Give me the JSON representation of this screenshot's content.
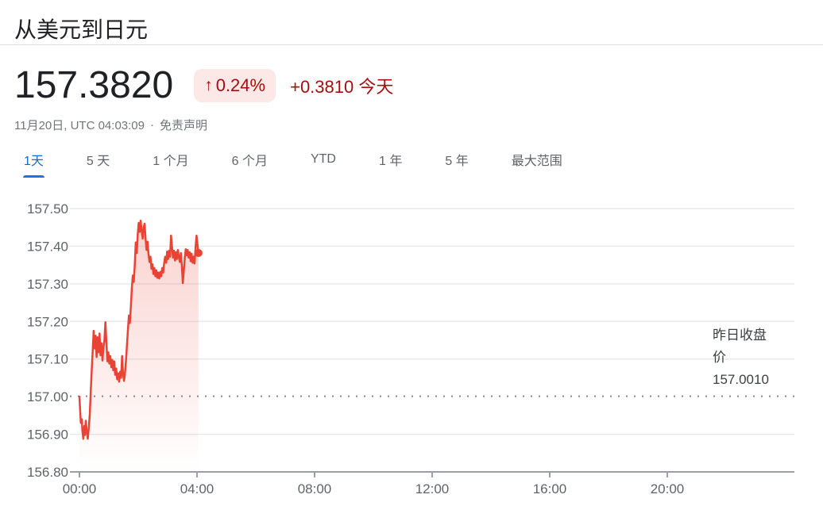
{
  "header": {
    "title": "从美元到日元"
  },
  "quote": {
    "price": "157.3820",
    "arrow": "↑",
    "change_percent": "0.24%",
    "change_line": "+0.3810 今天",
    "timestamp": "11月20日, UTC 04:03:09",
    "separator": "·",
    "disclaimer": "免责声明",
    "colors": {
      "accent_red_text": "#a50e0e",
      "badge_bg": "#fce8e6"
    }
  },
  "tabs": [
    {
      "id": "1d",
      "label": "1天",
      "active": true
    },
    {
      "id": "5d",
      "label": "5 天",
      "active": false
    },
    {
      "id": "1m",
      "label": "1 个月",
      "active": false
    },
    {
      "id": "6m",
      "label": "6 个月",
      "active": false
    },
    {
      "id": "ytd",
      "label": "YTD",
      "active": false
    },
    {
      "id": "1y",
      "label": "1 年",
      "active": false
    },
    {
      "id": "5y",
      "label": "5 年",
      "active": false
    },
    {
      "id": "max",
      "label": "最大范围",
      "active": false
    }
  ],
  "chart_data": {
    "type": "line",
    "title": "从美元到日元 1天",
    "xlabel": "",
    "ylabel": "",
    "x_unit": "UTC time, minutes after 00:00",
    "xlim_minutes": [
      0,
      1440
    ],
    "ylim": [
      156.8,
      157.5
    ],
    "grid": true,
    "y_ticks": [
      "156.80",
      "156.90",
      "157.00",
      "157.10",
      "157.20",
      "157.30",
      "157.40",
      "157.50"
    ],
    "x_ticks": [
      {
        "t": 0,
        "label": "00:00"
      },
      {
        "t": 240,
        "label": "04:00"
      },
      {
        "t": 480,
        "label": "08:00"
      },
      {
        "t": 720,
        "label": "12:00"
      },
      {
        "t": 960,
        "label": "16:00"
      },
      {
        "t": 1200,
        "label": "20:00"
      }
    ],
    "previous_close": {
      "label": "昨日收盘价",
      "value": "157.0010"
    },
    "line_color": "#ea4335",
    "grid_color": "#e8eaed",
    "axis_color": "#9aa0a6",
    "dotted_line_color": "#80868b",
    "tick_label_color": "#5f6368",
    "series": [
      {
        "name": "USD/JPY",
        "points": [
          [
            0,
            157.0
          ],
          [
            2,
            156.95
          ],
          [
            3,
            156.93
          ],
          [
            5,
            156.94
          ],
          [
            6,
            156.91
          ],
          [
            8,
            156.888
          ],
          [
            10,
            156.922
          ],
          [
            11,
            156.898
          ],
          [
            13,
            156.936
          ],
          [
            15,
            156.905
          ],
          [
            17,
            156.888
          ],
          [
            19,
            156.916
          ],
          [
            21,
            156.952
          ],
          [
            23,
            157.012
          ],
          [
            25,
            157.068
          ],
          [
            27,
            157.122
          ],
          [
            29,
            157.175
          ],
          [
            31,
            157.128
          ],
          [
            33,
            157.162
          ],
          [
            35,
            157.105
          ],
          [
            37,
            157.158
          ],
          [
            39,
            157.118
          ],
          [
            41,
            157.168
          ],
          [
            43,
            157.11
          ],
          [
            45,
            157.142
          ],
          [
            47,
            157.096
          ],
          [
            49,
            157.13
          ],
          [
            51,
            157.148
          ],
          [
            53,
            157.198
          ],
          [
            55,
            157.146
          ],
          [
            57,
            157.094
          ],
          [
            59,
            157.118
          ],
          [
            61,
            157.088
          ],
          [
            63,
            157.108
          ],
          [
            65,
            157.078
          ],
          [
            67,
            157.098
          ],
          [
            69,
            157.07
          ],
          [
            71,
            157.094
          ],
          [
            73,
            157.058
          ],
          [
            75,
            157.075
          ],
          [
            77,
            157.046
          ],
          [
            79,
            157.062
          ],
          [
            81,
            157.04
          ],
          [
            83,
            157.066
          ],
          [
            85,
            157.05
          ],
          [
            87,
            157.108
          ],
          [
            89,
            157.06
          ],
          [
            91,
            157.042
          ],
          [
            93,
            157.062
          ],
          [
            95,
            157.096
          ],
          [
            97,
            157.136
          ],
          [
            99,
            157.18
          ],
          [
            101,
            157.216
          ],
          [
            103,
            157.196
          ],
          [
            105,
            157.242
          ],
          [
            107,
            157.29
          ],
          [
            109,
            157.322
          ],
          [
            111,
            157.305
          ],
          [
            113,
            157.352
          ],
          [
            115,
            157.41
          ],
          [
            117,
            157.382
          ],
          [
            119,
            157.432
          ],
          [
            121,
            157.462
          ],
          [
            123,
            157.438
          ],
          [
            125,
            157.468
          ],
          [
            127,
            157.44
          ],
          [
            129,
            157.42
          ],
          [
            131,
            157.45
          ],
          [
            133,
            157.46
          ],
          [
            135,
            157.418
          ],
          [
            137,
            157.39
          ],
          [
            139,
            157.412
          ],
          [
            141,
            157.38
          ],
          [
            143,
            157.358
          ],
          [
            145,
            157.372
          ],
          [
            147,
            157.34
          ],
          [
            149,
            157.352
          ],
          [
            151,
            157.326
          ],
          [
            153,
            157.342
          ],
          [
            155,
            157.32
          ],
          [
            157,
            157.336
          ],
          [
            159,
            157.316
          ],
          [
            161,
            157.33
          ],
          [
            163,
            157.314
          ],
          [
            165,
            157.332
          ],
          [
            167,
            157.32
          ],
          [
            169,
            157.342
          ],
          [
            171,
            157.33
          ],
          [
            173,
            157.356
          ],
          [
            175,
            157.372
          ],
          [
            177,
            157.356
          ],
          [
            179,
            157.386
          ],
          [
            181,
            157.366
          ],
          [
            183,
            157.388
          ],
          [
            185,
            157.372
          ],
          [
            187,
            157.428
          ],
          [
            189,
            157.396
          ],
          [
            191,
            157.37
          ],
          [
            193,
            157.388
          ],
          [
            195,
            157.362
          ],
          [
            197,
            157.384
          ],
          [
            199,
            157.366
          ],
          [
            201,
            157.39
          ],
          [
            203,
            157.37
          ],
          [
            205,
            157.358
          ],
          [
            207,
            157.382
          ],
          [
            209,
            157.35
          ],
          [
            211,
            157.302
          ],
          [
            213,
            157.332
          ],
          [
            215,
            157.368
          ],
          [
            217,
            157.392
          ],
          [
            219,
            157.376
          ],
          [
            221,
            157.39
          ],
          [
            223,
            157.37
          ],
          [
            225,
            157.384
          ],
          [
            227,
            157.36
          ],
          [
            229,
            157.38
          ],
          [
            231,
            157.356
          ],
          [
            233,
            157.372
          ],
          [
            235,
            157.354
          ],
          [
            237,
            157.398
          ],
          [
            239,
            157.428
          ],
          [
            241,
            157.404
          ],
          [
            243,
            157.382
          ]
        ]
      }
    ]
  }
}
